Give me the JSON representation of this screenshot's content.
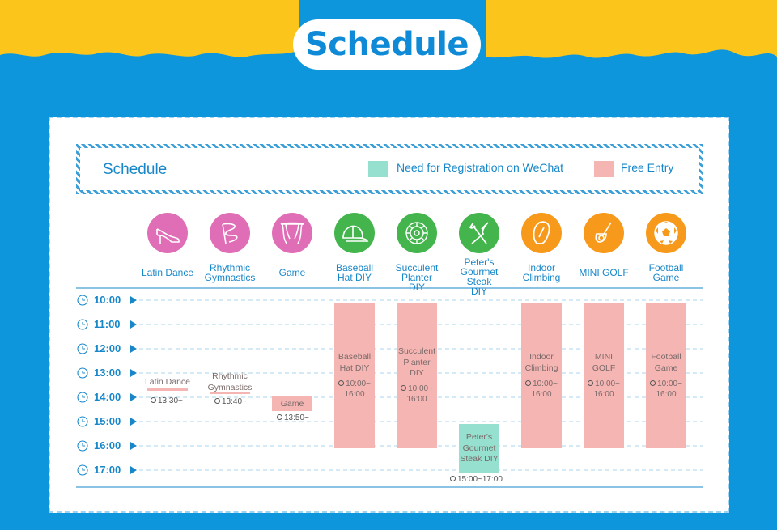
{
  "page_title": "Schedule",
  "colors": {
    "banner_yellow": "#fcc51c",
    "background_blue": "#0e96dc",
    "text_blue": "#1787c9",
    "registration": "#96e0cf",
    "free_entry": "#f5b6b3",
    "pink": "#e06eb6",
    "green": "#43b54c",
    "orange": "#f79a1b"
  },
  "legend": {
    "title": "Schedule",
    "registration_label": "Need for Registration on WeChat",
    "free_label": "Free Entry"
  },
  "activities": [
    {
      "name": "Latin Dance",
      "icon": "high-heel-shoe-icon",
      "color": "pink"
    },
    {
      "name": "Rhythmic Gymnastics",
      "icon": "ribbon-icon",
      "color": "pink"
    },
    {
      "name": "Game",
      "icon": "stage-curtain-icon",
      "color": "pink"
    },
    {
      "name": "Baseball Hat DIY",
      "icon": "baseball-cap-icon",
      "color": "green"
    },
    {
      "name": "Succulent Planter DIY",
      "icon": "succulent-icon",
      "color": "green"
    },
    {
      "name": "Peter's Gourmet Steak DIY",
      "icon": "fork-knife-icon",
      "color": "green"
    },
    {
      "name": "Indoor Climbing",
      "icon": "carabiner-icon",
      "color": "orange"
    },
    {
      "name": "MINI GOLF",
      "icon": "golf-icon",
      "color": "orange"
    },
    {
      "name": "Football Game",
      "icon": "soccer-ball-icon",
      "color": "orange"
    }
  ],
  "time_labels": [
    "10:00",
    "11:00",
    "12:00",
    "13:00",
    "14:00",
    "15:00",
    "16:00",
    "17:00"
  ],
  "timeline_items": {
    "latin": {
      "label": "Latin Dance",
      "time": "13:30~"
    },
    "rhythmic": {
      "label": "Rhythmic Gymnastics",
      "time": "13:40~"
    },
    "game": {
      "label": "Game",
      "time": "13:50~"
    },
    "baseball": {
      "label": "Baseball Hat DIY",
      "time": "10:00~ 16:00"
    },
    "succulent": {
      "label": "Succulent Planter DIY",
      "time": "10:00~ 16:00"
    },
    "steak": {
      "label": "Peter's Gourmet Steak DIY",
      "time": "15:00~17:00"
    },
    "climbing": {
      "label": "Indoor Climbing",
      "time": "10:00~ 16:00"
    },
    "golf": {
      "label": "MINI GOLF",
      "time": "10:00~ 16:00"
    },
    "football": {
      "label": "Football Game",
      "time": "10:00~ 16:00"
    }
  }
}
